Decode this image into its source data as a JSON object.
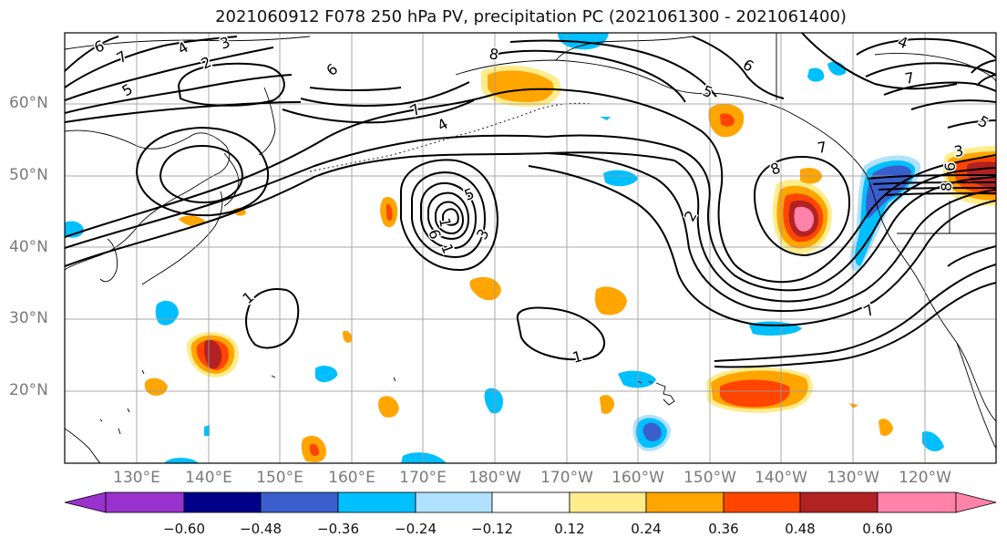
{
  "title": "2021060912 F078 250 hPa PV, precipitation PC (2021061300 - 2021061400)",
  "map": {
    "lon_range": [
      120,
      -110
    ],
    "lat_range": [
      10,
      70
    ],
    "lat_labels": [
      "60°N",
      "50°N",
      "40°N",
      "30°N",
      "20°N"
    ],
    "lon_labels": [
      "130°E",
      "140°E",
      "150°E",
      "160°E",
      "170°E",
      "180°W",
      "170°W",
      "160°W",
      "150°W",
      "140°W",
      "130°W",
      "120°W"
    ],
    "gridlines": true,
    "pv_contour_labels": [
      "6",
      "7",
      "4",
      "5",
      "3",
      "2",
      "6",
      "8",
      "4",
      "7",
      "5",
      "7",
      "8",
      "6",
      "2",
      "5",
      "1",
      "6",
      "3",
      "1",
      "1",
      "1",
      "7",
      "3",
      "8",
      "7",
      "6",
      "4",
      "5"
    ]
  },
  "colorbar": {
    "tick_labels": [
      "−0.60",
      "−0.48",
      "−0.36",
      "−0.24",
      "−0.12",
      "0.12",
      "0.24",
      "0.36",
      "0.48",
      "0.60"
    ],
    "colors": [
      "#9932cc",
      "#00008b",
      "#3a5fcd",
      "#00bfff",
      "#b0e2ff",
      "#ffffff",
      "#ffec8b",
      "#ffa500",
      "#ff4500",
      "#b22222",
      "#ff82ab"
    ],
    "extend": "both"
  }
}
